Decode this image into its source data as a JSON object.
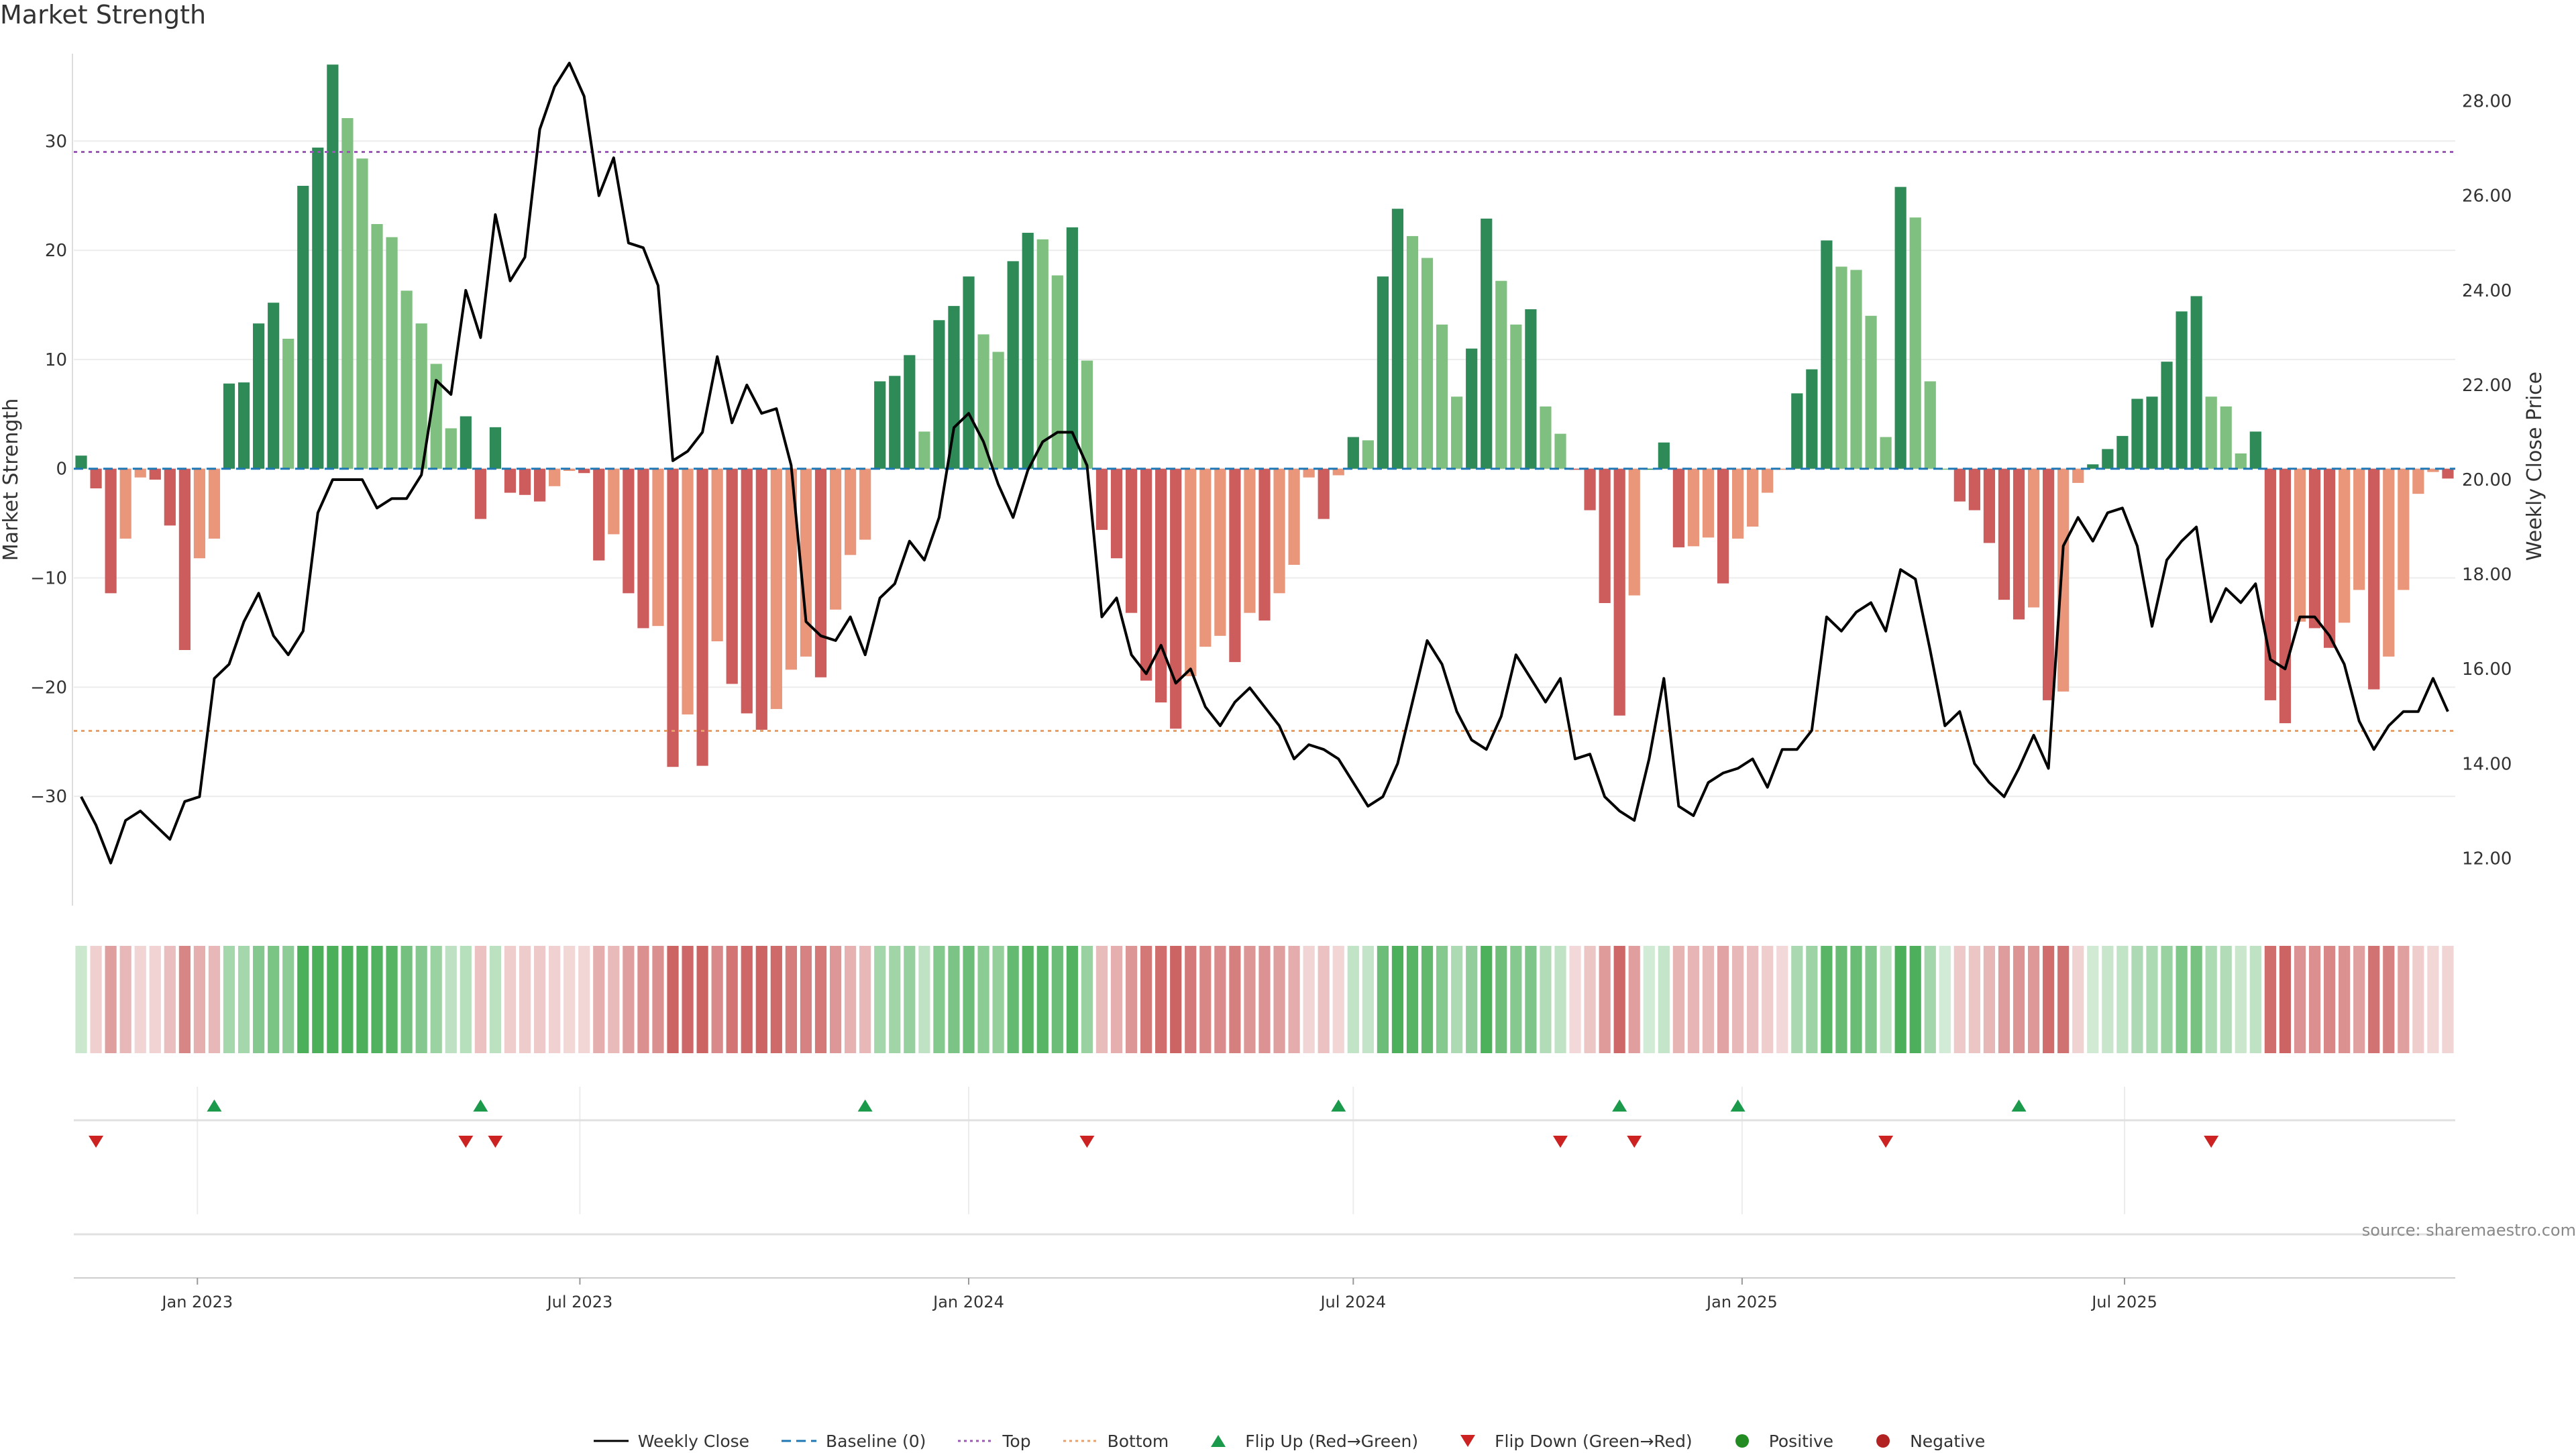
{
  "title": "Market Strength",
  "source": "source: sharemaestro.com",
  "colors": {
    "pos_strong": "#2e8b57",
    "pos_weak": "#7fbf7f",
    "neg_strong": "#cd5c5c",
    "neg_weak": "#e9967a",
    "price": "#000000",
    "baseline": "#1f77b4",
    "top": "#9b59b6",
    "bottom": "#e8a06a",
    "flip_up": "#1a9a4a",
    "flip_down": "#cc2222",
    "positive": "#228b22",
    "negative": "#b22222"
  },
  "legend": [
    {
      "key": "weekly_close",
      "label": "Weekly Close"
    },
    {
      "key": "baseline",
      "label": "Baseline (0)"
    },
    {
      "key": "top",
      "label": "Top"
    },
    {
      "key": "bottom",
      "label": "Bottom"
    },
    {
      "key": "flip_up",
      "label": "Flip Up (Red→Green)"
    },
    {
      "key": "flip_down",
      "label": "Flip Down (Green→Red)"
    },
    {
      "key": "positive",
      "label": "Positive"
    },
    {
      "key": "negative",
      "label": "Negative"
    }
  ],
  "chart_data": {
    "type": "bar",
    "x_axis": {
      "type": "date",
      "start": "2022-11-07",
      "interval_days": 7,
      "ticks": [
        "2023-01-01",
        "2023-07-01",
        "2024-01-01",
        "2024-07-01",
        "2025-01-01",
        "2025-07-01"
      ],
      "tick_labels": [
        "Jan 2023",
        "Jul 2023",
        "Jan 2024",
        "Jul 2024",
        "Jan 2025",
        "Jul 2025"
      ]
    },
    "y_left": {
      "label": "Market Strength",
      "lim": [
        -40,
        38
      ],
      "ticks": [
        -30,
        -20,
        -10,
        0,
        10,
        20,
        30
      ],
      "tick_labels": [
        "−30",
        "−20",
        "−10",
        "0",
        "10",
        "20",
        "30"
      ]
    },
    "y_right": {
      "label": "Weekly Close Price",
      "lim": [
        11.0,
        29.0
      ],
      "ticks": [
        12,
        14,
        16,
        18,
        20,
        22,
        24,
        26,
        28
      ],
      "tick_labels": [
        "12.00",
        "14.00",
        "16.00",
        "18.00",
        "20.00",
        "22.00",
        "24.00",
        "26.00",
        "28.00"
      ]
    },
    "top_line": 29,
    "bottom_line": -24,
    "grid": true,
    "legend_position": "bottom",
    "series": [
      {
        "name": "Market Strength",
        "type": "bar",
        "values": [
          1.2,
          -1.8,
          -11.4,
          -6.4,
          -0.8,
          -1.0,
          -5.2,
          -16.6,
          -8.2,
          -6.4,
          7.8,
          7.9,
          13.3,
          15.2,
          11.9,
          25.9,
          29.4,
          37.0,
          32.1,
          28.4,
          22.4,
          21.2,
          16.3,
          13.3,
          9.6,
          3.7,
          4.8,
          -4.6,
          3.8,
          -2.2,
          -2.4,
          -3.0,
          -1.6,
          -0.2,
          -0.4,
          -8.4,
          -6.0,
          -11.4,
          -14.6,
          -14.4,
          -27.3,
          -22.5,
          -27.2,
          -15.8,
          -19.7,
          -22.4,
          -23.9,
          -22.0,
          -18.4,
          -17.2,
          -19.1,
          -12.9,
          -7.9,
          -6.5,
          8.0,
          8.5,
          10.4,
          3.4,
          13.6,
          14.9,
          17.6,
          12.3,
          10.7,
          19.0,
          21.6,
          21.0,
          17.7,
          22.1,
          9.9,
          -5.6,
          -8.2,
          -13.2,
          -19.4,
          -21.4,
          -23.8,
          -19.0,
          -16.3,
          -15.3,
          -17.7,
          -13.2,
          -13.9,
          -11.4,
          -8.8,
          -0.8,
          -4.6,
          -0.6,
          2.9,
          2.6,
          17.6,
          23.8,
          21.3,
          19.3,
          13.2,
          6.6,
          11.0,
          22.9,
          17.2,
          13.2,
          14.6,
          5.7,
          3.2,
          -0.1,
          -3.8,
          -12.3,
          -22.6,
          -11.6,
          0.0,
          2.4,
          -7.2,
          -7.1,
          -6.3,
          -10.5,
          -6.4,
          -5.3,
          -2.2,
          -0.1,
          6.9,
          9.1,
          20.9,
          18.5,
          18.2,
          14.0,
          2.9,
          25.8,
          23.0,
          8.0,
          0.0,
          -3.0,
          -3.8,
          -6.8,
          -12.0,
          -13.8,
          -12.7,
          -21.2,
          -20.4,
          -1.3,
          0.4,
          1.8,
          3.0,
          6.4,
          6.6,
          9.8,
          14.4,
          15.8,
          6.6,
          5.7,
          1.4,
          3.4,
          -21.2,
          -23.3,
          -14.0,
          -14.6,
          -16.4,
          -14.1,
          -11.1,
          -20.2,
          -17.2,
          -11.1,
          -2.3,
          -0.3,
          -0.9
        ]
      },
      {
        "name": "Weekly Close",
        "type": "line",
        "axis": "right",
        "values": [
          13.3,
          12.7,
          11.9,
          12.8,
          13.0,
          12.7,
          12.4,
          13.2,
          13.3,
          15.8,
          16.1,
          17.0,
          17.6,
          16.7,
          16.3,
          16.8,
          19.3,
          20.0,
          20.0,
          20.0,
          19.4,
          19.6,
          19.6,
          20.1,
          22.1,
          21.8,
          24.0,
          23.0,
          25.6,
          24.2,
          24.7,
          27.4,
          28.3,
          28.8,
          28.1,
          26.0,
          26.8,
          25.0,
          24.9,
          24.1,
          20.4,
          20.6,
          21.0,
          22.6,
          21.2,
          22.0,
          21.4,
          21.5,
          20.3,
          17.0,
          16.7,
          16.6,
          17.1,
          16.3,
          17.5,
          17.8,
          18.7,
          18.3,
          19.2,
          21.1,
          21.4,
          20.8,
          19.9,
          19.2,
          20.2,
          20.8,
          21.0,
          21.0,
          20.3,
          17.1,
          17.5,
          16.3,
          15.9,
          16.5,
          15.7,
          16.0,
          15.2,
          14.8,
          15.3,
          15.6,
          15.2,
          14.8,
          14.1,
          14.4,
          14.3,
          14.1,
          13.6,
          13.1,
          13.3,
          14.0,
          15.3,
          16.6,
          16.1,
          15.1,
          14.5,
          14.3,
          15.0,
          16.3,
          15.8,
          15.3,
          15.8,
          14.1,
          14.2,
          13.3,
          13.0,
          12.8,
          14.1,
          15.8,
          13.1,
          12.9,
          13.6,
          13.8,
          13.9,
          14.1,
          13.5,
          14.3,
          14.3,
          14.7,
          17.1,
          16.8,
          17.2,
          17.4,
          16.8,
          18.1,
          17.9,
          16.4,
          14.8,
          15.1,
          14.0,
          13.6,
          13.3,
          13.9,
          14.6,
          13.9,
          18.6,
          19.2,
          18.7,
          19.3,
          19.4,
          18.6,
          16.9,
          18.3,
          18.7,
          19.0,
          17.0,
          17.7,
          17.4,
          17.8,
          16.2,
          16.0,
          17.1,
          17.1,
          16.7,
          16.1,
          14.9,
          14.3,
          14.8,
          15.1,
          15.1,
          15.8,
          15.1
        ]
      }
    ],
    "flip_up_indices": [
      9,
      27,
      53,
      85,
      104,
      112,
      131
    ],
    "flip_down_indices": [
      1,
      26,
      28,
      68,
      100,
      105,
      122,
      144
    ]
  }
}
